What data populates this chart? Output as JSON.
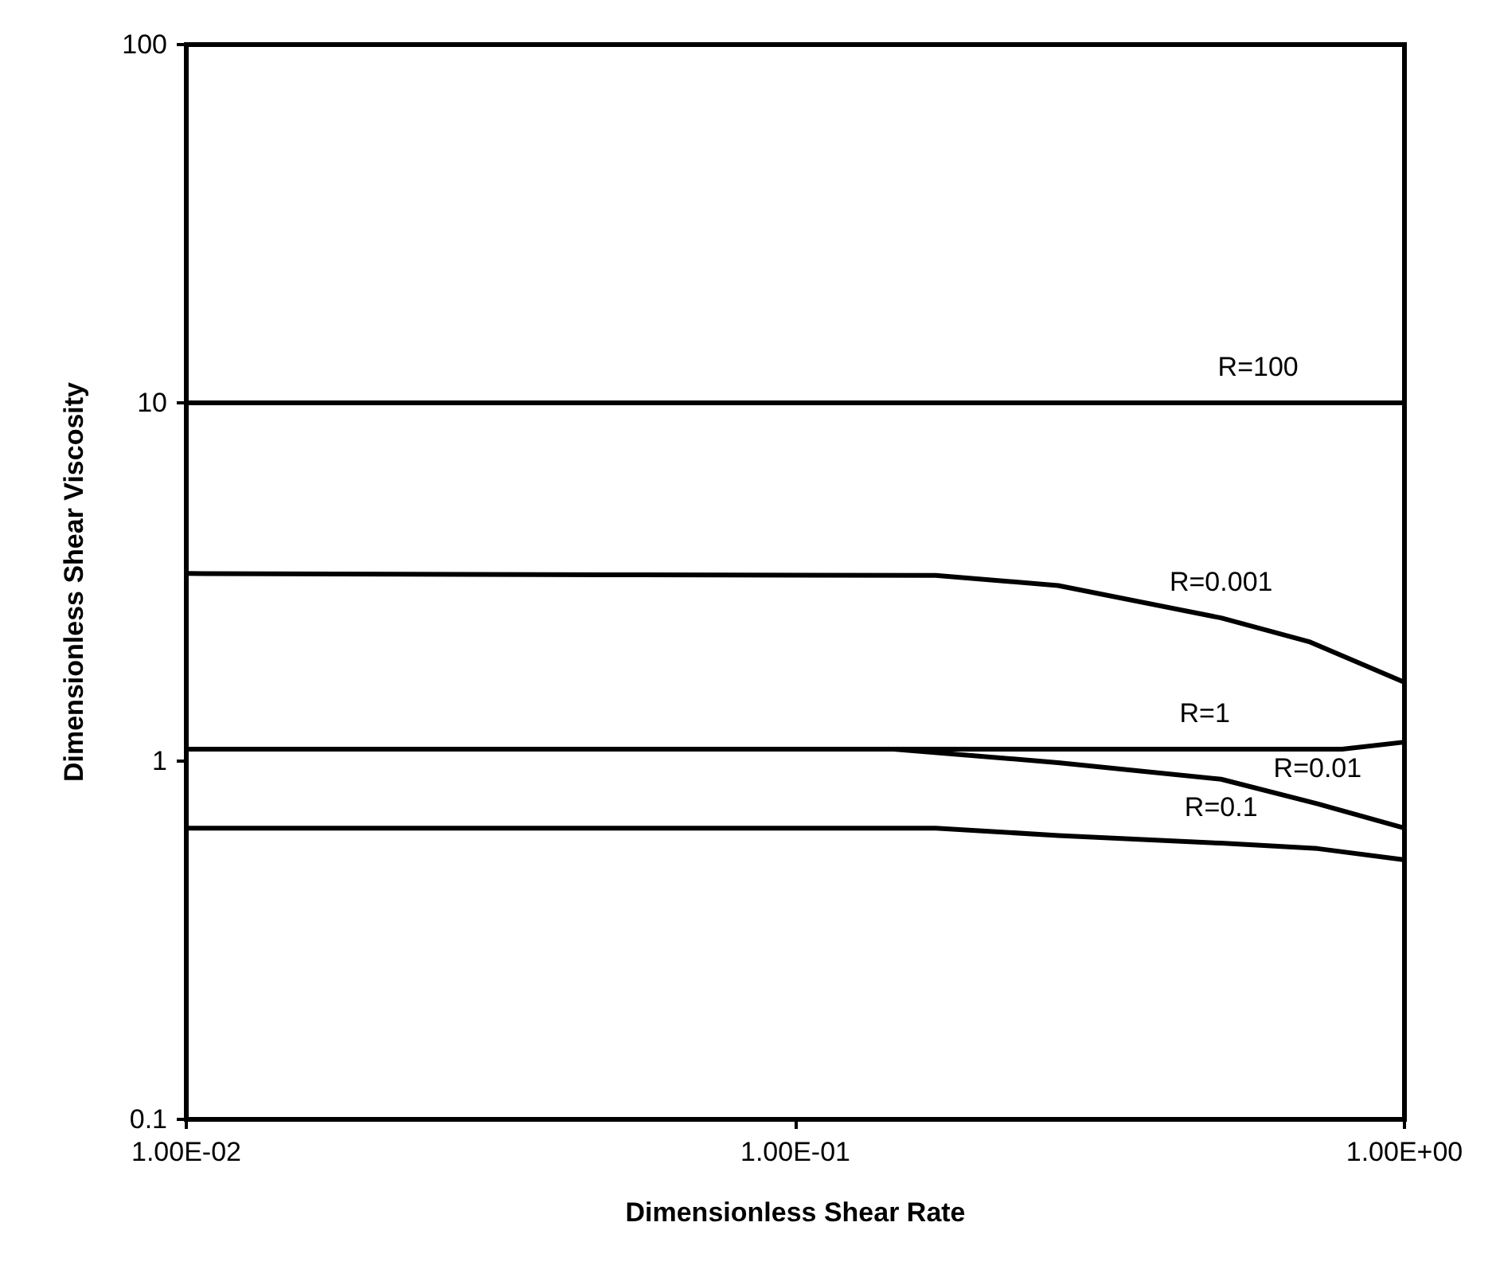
{
  "chart_data": {
    "type": "line",
    "xlabel": "Dimensionless Shear Rate",
    "ylabel": "Dimensionless Shear Viscosity",
    "log": "xy",
    "grid": false,
    "marker": "none",
    "line_style": "solid",
    "xlim": [
      0.01,
      1
    ],
    "ylim": [
      0.1,
      100
    ],
    "xticks": [
      {
        "value": 0.01,
        "label": "1.00E-02"
      },
      {
        "value": 0.1,
        "label": "1.00E-01"
      },
      {
        "value": 1,
        "label": "1.00E+00"
      }
    ],
    "yticks": [
      0.1,
      1,
      10,
      100
    ],
    "series": [
      {
        "color": "#000000",
        "x": [
          0.01,
          1
        ],
        "values": [
          10,
          10
        ]
      },
      {
        "color": "#000000",
        "x": [
          0.01,
          0.056,
          0.17,
          0.27,
          0.5,
          0.7,
          1
        ],
        "values": [
          3.34,
          3.31,
          3.3,
          3.09,
          2.51,
          2.15,
          1.66
        ]
      },
      {
        "color": "#000000",
        "x": [
          0.01,
          0.79,
          1
        ],
        "values": [
          1.08,
          1.08,
          1.13
        ]
      },
      {
        "color": "#000000",
        "x": [
          0.01,
          0.145,
          0.27,
          0.5,
          0.72,
          1
        ],
        "values": [
          1.08,
          1.08,
          0.99,
          0.89,
          0.76,
          0.65
        ]
      },
      {
        "color": "#000000",
        "x": [
          0.01,
          0.17,
          0.27,
          0.5,
          0.72,
          1
        ],
        "values": [
          0.65,
          0.65,
          0.62,
          0.59,
          0.57,
          0.53
        ]
      }
    ],
    "annotations": [
      {
        "text": "R=100",
        "x": 0.575,
        "y": 10
      },
      {
        "text": "R=0.001",
        "x": 0.5,
        "y": 2.51
      },
      {
        "text": "R=1",
        "x": 0.47,
        "y": 1.08
      },
      {
        "text": "R=0.01",
        "x": 0.72,
        "y": 0.76
      },
      {
        "text": "R=0.1",
        "x": 0.5,
        "y": 0.59
      }
    ]
  }
}
